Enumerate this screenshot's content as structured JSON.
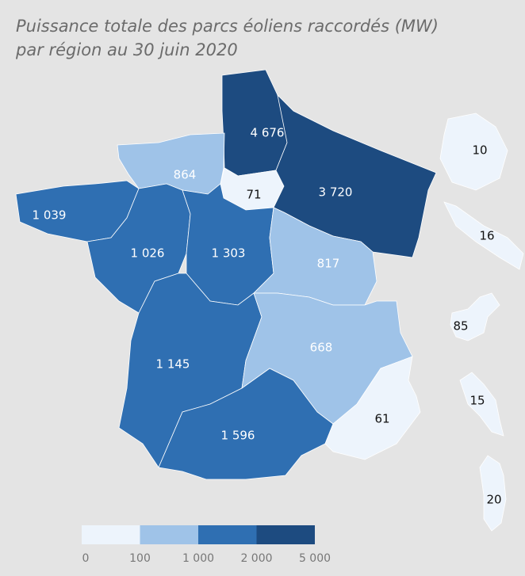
{
  "map": {
    "title": [
      "Puissance totale des parcs éoliens raccordés (MW)",
      "par région au 30 juin 2020"
    ],
    "regions": [
      {
        "value": 4676,
        "label": "4 676"
      },
      {
        "value": 71
      },
      {
        "value": 864
      },
      {
        "value": 3720,
        "label": "3 720"
      },
      {
        "value": 1039,
        "label": "1 039"
      },
      {
        "value": 1026,
        "label": "1 026"
      },
      {
        "value": 1303,
        "label": "1 303"
      },
      {
        "value": 817
      },
      {
        "value": 1145,
        "label": "1 145"
      },
      {
        "value": 668
      },
      {
        "value": 1596,
        "label": "1 596"
      },
      {
        "value": 61
      },
      {
        "value": 10
      },
      {
        "value": 16
      },
      {
        "value": 85
      },
      {
        "value": 15
      },
      {
        "value": 20
      }
    ],
    "legend": {
      "ticks": [
        0,
        100,
        {
          "value": 1000,
          "label": "1 000"
        },
        {
          "value": 2000,
          "label": "2 000"
        },
        {
          "value": 5000,
          "label": "5 000"
        }
      ],
      "colors": [
        "#edf4fc",
        "#9fc3e8",
        "#2f6fb2",
        "#1d4b80"
      ]
    }
  }
}
